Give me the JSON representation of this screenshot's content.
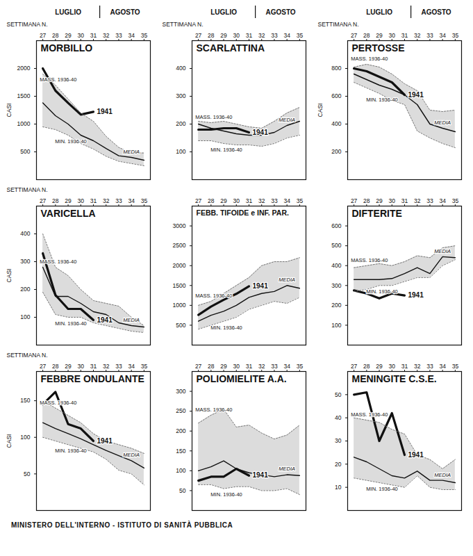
{
  "months": [
    {
      "label": "LUGLIO",
      "weeks": [
        27,
        31
      ]
    },
    {
      "label": "AGOSTO",
      "weeks": [
        32,
        35
      ]
    }
  ],
  "footer": "MINISTERO DELL'INTERNO - ISTITUTO DI SANITÀ PUBBLICA",
  "chart_data": [
    {
      "type": "line",
      "title": "MORBILLO",
      "xlabel": "SETTIMANA N.",
      "ylabel": "CASI",
      "x": [
        27,
        28,
        29,
        30,
        31,
        32,
        33,
        34,
        35
      ],
      "xlim": [
        26.5,
        35.5
      ],
      "xticks": [
        27,
        28,
        29,
        30,
        31,
        32,
        33,
        34,
        35
      ],
      "ylim": [
        0,
        2500
      ],
      "yticks": [
        500,
        1000,
        1500,
        2000
      ],
      "series": [
        {
          "name": "1941",
          "color": "#111111",
          "line_style": "bold",
          "values": [
            2000,
            1600,
            1380,
            1170,
            1220,
            null,
            null,
            null,
            null
          ]
        },
        {
          "name": "MEDIA",
          "color": "#111111",
          "line_style": "solid",
          "values": [
            1380,
            1150,
            1000,
            800,
            700,
            560,
            430,
            400,
            350
          ]
        },
        {
          "name": "MASS. 1936-40",
          "color": "#777777",
          "line_style": "dotted",
          "values": [
            1900,
            1700,
            1450,
            1200,
            1050,
            780,
            580,
            480,
            480
          ]
        },
        {
          "name": "MIN. 1936-40",
          "color": "#777777",
          "line_style": "dotted",
          "values": [
            950,
            900,
            800,
            650,
            550,
            420,
            330,
            290,
            250
          ]
        }
      ]
    },
    {
      "type": "line",
      "title": "SCARLATTINA",
      "xlabel": "SETTIMANA N.",
      "ylabel": null,
      "x": [
        27,
        28,
        29,
        30,
        31,
        32,
        33,
        34,
        35
      ],
      "xlim": [
        26.5,
        35.5
      ],
      "xticks": [
        27,
        28,
        29,
        30,
        31,
        32,
        33,
        34,
        35
      ],
      "ylim": [
        0,
        500
      ],
      "yticks": [
        100,
        200,
        300,
        400
      ],
      "series": [
        {
          "name": "1941",
          "color": "#111111",
          "line_style": "bold",
          "values": [
            180,
            180,
            185,
            185,
            170,
            null,
            null,
            null,
            null
          ]
        },
        {
          "name": "MEDIA",
          "color": "#111111",
          "line_style": "solid",
          "values": [
            200,
            185,
            175,
            165,
            160,
            160,
            170,
            195,
            210
          ]
        },
        {
          "name": "MASS. 1936-40",
          "color": "#777777",
          "line_style": "dotted",
          "values": [
            210,
            205,
            210,
            200,
            190,
            185,
            210,
            240,
            260
          ]
        },
        {
          "name": "MIN. 1936-40",
          "color": "#777777",
          "line_style": "dotted",
          "values": [
            140,
            140,
            130,
            125,
            125,
            120,
            130,
            150,
            160
          ]
        }
      ]
    },
    {
      "type": "line",
      "title": "PERTOSSE",
      "xlabel": "SETTIMANA N.",
      "ylabel": "CASI",
      "x": [
        27,
        28,
        29,
        30,
        31,
        32,
        33,
        34,
        35
      ],
      "xlim": [
        26.5,
        35.5
      ],
      "xticks": [
        27,
        28,
        29,
        30,
        31,
        32,
        33,
        34,
        35
      ],
      "ylim": [
        0,
        1000
      ],
      "yticks": [
        200,
        400,
        600,
        800
      ],
      "series": [
        {
          "name": "1941",
          "color": "#111111",
          "line_style": "bold",
          "values": [
            800,
            780,
            740,
            700,
            610,
            null,
            null,
            null,
            null
          ]
        },
        {
          "name": "MEDIA",
          "color": "#111111",
          "line_style": "solid",
          "values": [
            760,
            720,
            680,
            650,
            610,
            540,
            400,
            370,
            345
          ]
        },
        {
          "name": "MASS. 1936-40",
          "color": "#777777",
          "line_style": "dotted",
          "values": [
            810,
            830,
            810,
            760,
            690,
            640,
            500,
            490,
            500
          ]
        },
        {
          "name": "MIN. 1936-40",
          "color": "#777777",
          "line_style": "dotted",
          "values": [
            700,
            660,
            620,
            570,
            540,
            350,
            300,
            260,
            230
          ]
        }
      ]
    },
    {
      "type": "line",
      "title": "VARICELLA",
      "xlabel": "SETTIMANA N.",
      "ylabel": "CASI",
      "x": [
        27,
        28,
        29,
        30,
        31,
        32,
        33,
        34,
        35
      ],
      "xlim": [
        26.5,
        35.5
      ],
      "xticks": [
        27,
        28,
        29,
        30,
        31,
        32,
        33,
        34,
        35
      ],
      "ylim": [
        0,
        500
      ],
      "yticks": [
        100,
        200,
        300,
        400
      ],
      "series": [
        {
          "name": "1941",
          "color": "#111111",
          "line_style": "bold",
          "values": [
            330,
            180,
            130,
            130,
            90,
            null,
            null,
            null,
            null
          ]
        },
        {
          "name": "MEDIA",
          "color": "#111111",
          "line_style": "solid",
          "values": [
            280,
            175,
            175,
            150,
            120,
            110,
            80,
            70,
            65
          ]
        },
        {
          "name": "MASS. 1936-40",
          "color": "#777777",
          "line_style": "dotted",
          "values": [
            400,
            280,
            250,
            200,
            160,
            150,
            140,
            100,
            70
          ]
        },
        {
          "name": "MIN. 1936-40",
          "color": "#777777",
          "line_style": "dotted",
          "values": [
            190,
            110,
            100,
            100,
            80,
            70,
            60,
            50,
            45
          ]
        }
      ]
    },
    {
      "type": "line",
      "title": "FEBB. TIFOIDE e INF. PAR.",
      "xlabel": null,
      "ylabel": null,
      "x": [
        27,
        28,
        29,
        30,
        31,
        32,
        33,
        34,
        35
      ],
      "xlim": [
        26.5,
        35.5
      ],
      "xticks": [
        27,
        28,
        29,
        30,
        31,
        32,
        33,
        34,
        35
      ],
      "ylim": [
        0,
        3500
      ],
      "yticks": [
        500,
        1000,
        1500,
        2000,
        2500,
        3000
      ],
      "series": [
        {
          "name": "1941",
          "color": "#111111",
          "line_style": "bold",
          "values": [
            760,
            970,
            1140,
            1290,
            1480,
            null,
            null,
            null,
            null
          ]
        },
        {
          "name": "MEDIA",
          "color": "#111111",
          "line_style": "solid",
          "values": [
            600,
            750,
            850,
            1000,
            1200,
            1300,
            1350,
            1500,
            1430
          ]
        },
        {
          "name": "MASS. 1936-40",
          "color": "#777777",
          "line_style": "dotted",
          "values": [
            1000,
            1100,
            1300,
            1500,
            1700,
            2000,
            2100,
            2100,
            2200
          ]
        },
        {
          "name": "MIN. 1936-40",
          "color": "#777777",
          "line_style": "dotted",
          "values": [
            400,
            500,
            600,
            700,
            900,
            1000,
            1100,
            1050,
            1200
          ]
        }
      ]
    },
    {
      "type": "line",
      "title": "DIFTERITE",
      "xlabel": null,
      "ylabel": null,
      "x": [
        27,
        28,
        29,
        30,
        31,
        32,
        33,
        34,
        35
      ],
      "xlim": [
        26.5,
        35.5
      ],
      "xticks": [
        27,
        28,
        29,
        30,
        31,
        32,
        33,
        34,
        35
      ],
      "ylim": [
        0,
        700
      ],
      "yticks": [
        100,
        200,
        300,
        400,
        500,
        600
      ],
      "series": [
        {
          "name": "1941",
          "color": "#111111",
          "line_style": "bold",
          "values": [
            275,
            260,
            235,
            260,
            250,
            null,
            null,
            null,
            null
          ]
        },
        {
          "name": "MEDIA",
          "color": "#111111",
          "line_style": "solid",
          "values": [
            330,
            330,
            330,
            335,
            360,
            390,
            360,
            445,
            440
          ]
        },
        {
          "name": "MASS. 1936-40",
          "color": "#777777",
          "line_style": "dotted",
          "values": [
            390,
            400,
            410,
            400,
            420,
            450,
            440,
            490,
            500
          ]
        },
        {
          "name": "MIN. 1936-40",
          "color": "#777777",
          "line_style": "dotted",
          "values": [
            270,
            280,
            300,
            300,
            320,
            340,
            340,
            400,
            430
          ]
        }
      ]
    },
    {
      "type": "line",
      "title": "FEBBRE ONDULANTE",
      "xlabel": "SETTIMANA N.",
      "ylabel": "CASI",
      "x": [
        27,
        28,
        29,
        30,
        31,
        32,
        33,
        34,
        35
      ],
      "xlim": [
        26.5,
        35.5
      ],
      "xticks": [
        27,
        28,
        29,
        30,
        31,
        32,
        33,
        34,
        35
      ],
      "ylim": [
        0,
        190
      ],
      "yticks": [
        50,
        100,
        150
      ],
      "series": [
        {
          "name": "1941",
          "color": "#111111",
          "line_style": "bold",
          "values": [
            145,
            162,
            118,
            112,
            95,
            null,
            null,
            null,
            null
          ]
        },
        {
          "name": "MEDIA",
          "color": "#111111",
          "line_style": "solid",
          "values": [
            120,
            112,
            105,
            98,
            90,
            82,
            75,
            68,
            58
          ]
        },
        {
          "name": "MASS. 1936-40",
          "color": "#777777",
          "line_style": "dotted",
          "values": [
            150,
            140,
            130,
            120,
            105,
            95,
            90,
            85,
            78
          ]
        },
        {
          "name": "MIN. 1936-40",
          "color": "#777777",
          "line_style": "dotted",
          "values": [
            100,
            95,
            90,
            85,
            80,
            70,
            55,
            50,
            35
          ]
        }
      ]
    },
    {
      "type": "line",
      "title": "POLIOMIELITE A.A.",
      "xlabel": null,
      "ylabel": null,
      "x": [
        27,
        28,
        29,
        30,
        31,
        32,
        33,
        34,
        35
      ],
      "xlim": [
        26.5,
        35.5
      ],
      "xticks": [
        27,
        28,
        29,
        30,
        31,
        32,
        33,
        34,
        35
      ],
      "ylim": [
        0,
        350
      ],
      "yticks": [
        50,
        100,
        150,
        200,
        250,
        300
      ],
      "series": [
        {
          "name": "1941",
          "color": "#111111",
          "line_style": "bold",
          "values": [
            75,
            85,
            85,
            105,
            88,
            null,
            null,
            null,
            null
          ]
        },
        {
          "name": "MEDIA",
          "color": "#111111",
          "line_style": "solid",
          "values": [
            100,
            110,
            125,
            105,
            95,
            90,
            85,
            90,
            88
          ]
        },
        {
          "name": "MASS. 1936-40",
          "color": "#777777",
          "line_style": "dotted",
          "values": [
            220,
            240,
            255,
            210,
            215,
            195,
            180,
            190,
            215
          ]
        },
        {
          "name": "MIN. 1936-40",
          "color": "#777777",
          "line_style": "dotted",
          "values": [
            65,
            65,
            55,
            60,
            60,
            50,
            50,
            55,
            40
          ]
        }
      ]
    },
    {
      "type": "line",
      "title": "MENINGITE C.S.E.",
      "xlabel": null,
      "ylabel": null,
      "x": [
        27,
        28,
        29,
        30,
        31,
        32,
        33,
        34,
        35
      ],
      "xlim": [
        26.5,
        35.5
      ],
      "xticks": [
        27,
        28,
        29,
        30,
        31,
        32,
        33,
        34,
        35
      ],
      "ylim": [
        0,
        60
      ],
      "yticks": [
        10,
        20,
        30,
        40,
        50
      ],
      "series": [
        {
          "name": "1941",
          "color": "#111111",
          "line_style": "bold",
          "values": [
            50,
            51,
            30,
            42,
            24,
            null,
            null,
            null,
            null
          ]
        },
        {
          "name": "MEDIA",
          "color": "#111111",
          "line_style": "solid",
          "values": [
            23,
            21,
            18,
            15,
            14,
            17,
            13,
            13,
            12
          ]
        },
        {
          "name": "MASS. 1936-40",
          "color": "#777777",
          "line_style": "dotted",
          "values": [
            40,
            39,
            38,
            35,
            33,
            24,
            22,
            18,
            22
          ]
        },
        {
          "name": "MIN. 1936-40",
          "color": "#777777",
          "line_style": "dotted",
          "values": [
            14,
            13,
            12,
            11,
            10,
            15,
            10,
            9,
            9
          ]
        }
      ]
    }
  ]
}
